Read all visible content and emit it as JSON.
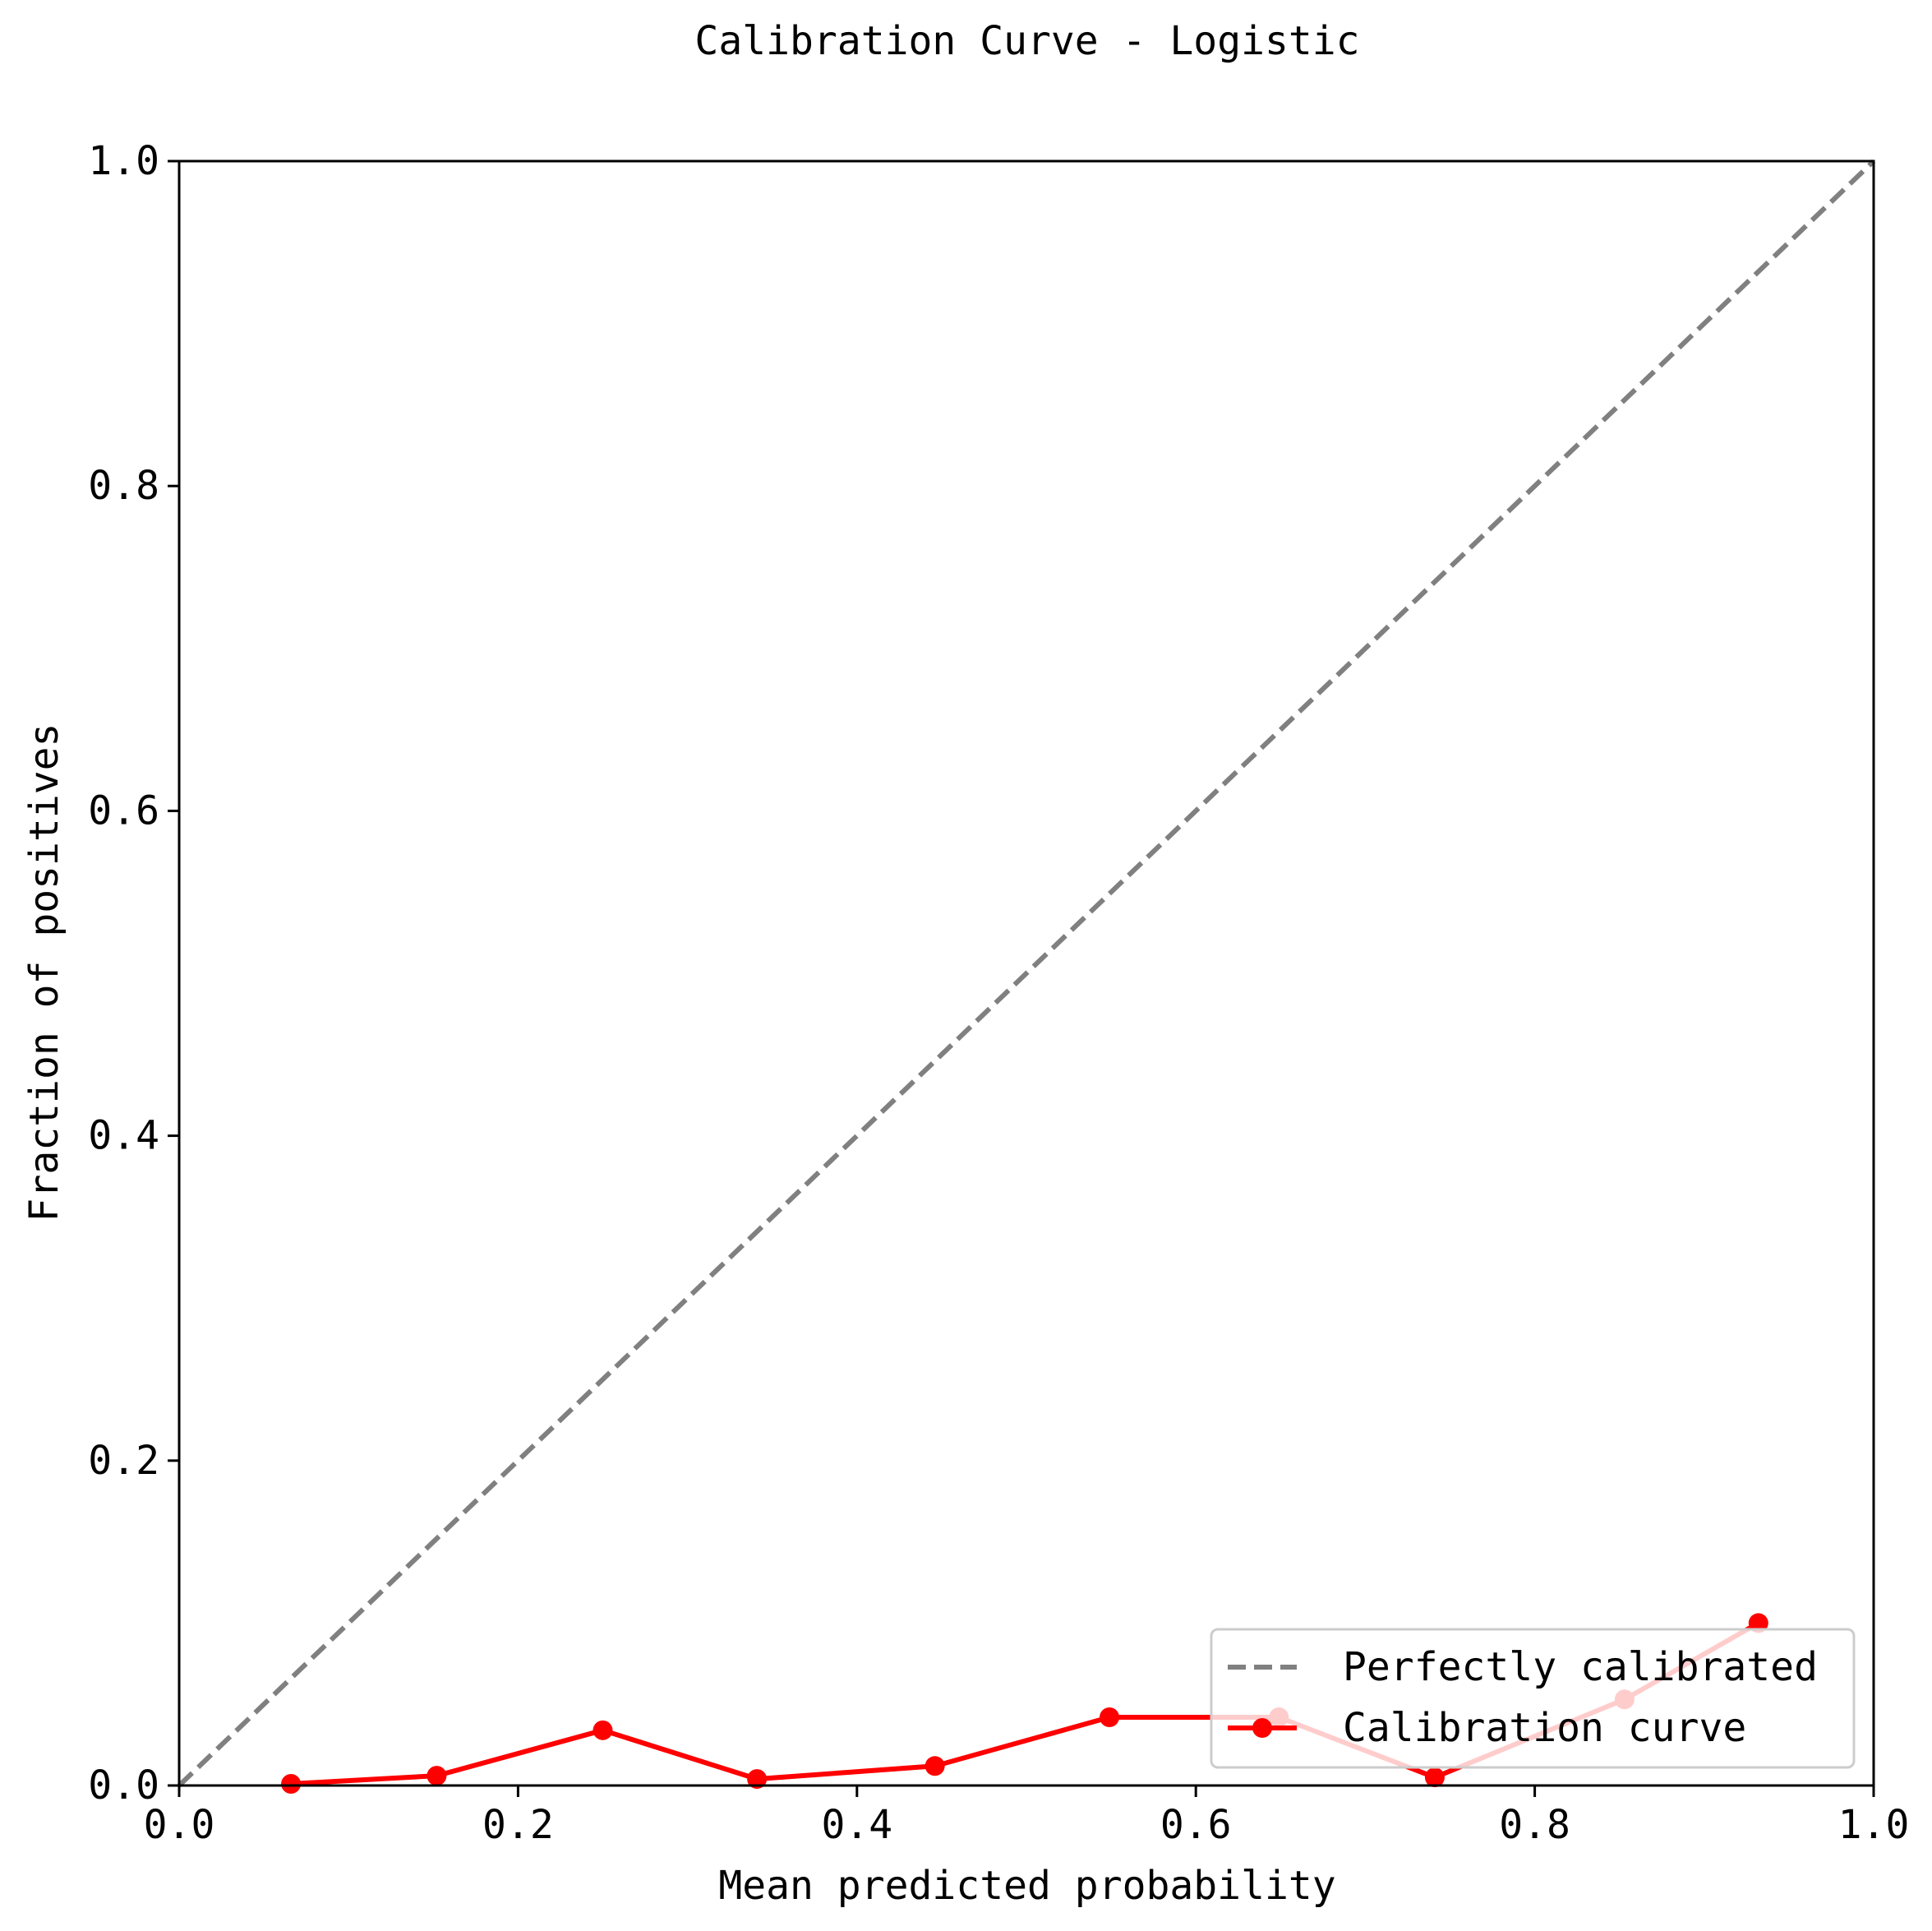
{
  "chart_data": {
    "type": "line",
    "title": "Calibration Curve - Logistic",
    "xlabel": "Mean predicted probability",
    "ylabel": "Fraction of positives",
    "xlim": [
      0.0,
      1.0
    ],
    "ylim": [
      0.0,
      1.0
    ],
    "xticks": [
      "0.0",
      "0.2",
      "0.4",
      "0.6",
      "0.8",
      "1.0"
    ],
    "yticks": [
      "0.0",
      "0.2",
      "0.4",
      "0.6",
      "0.8",
      "1.0"
    ],
    "grid": false,
    "legend_position": "lower-right",
    "series": [
      {
        "name": "Perfectly calibrated",
        "style": "dashed",
        "color": "#808080",
        "x": [
          0.0,
          1.0
        ],
        "y": [
          0.0,
          1.0
        ]
      },
      {
        "name": "Calibration curve",
        "style": "solid-markers",
        "color": "#ff0000",
        "x": [
          0.066,
          0.152,
          0.25,
          0.341,
          0.446,
          0.549,
          0.649,
          0.741,
          0.853,
          0.932
        ],
        "y": [
          0.001,
          0.006,
          0.034,
          0.004,
          0.012,
          0.042,
          0.042,
          0.005,
          0.053,
          0.1
        ]
      }
    ]
  }
}
